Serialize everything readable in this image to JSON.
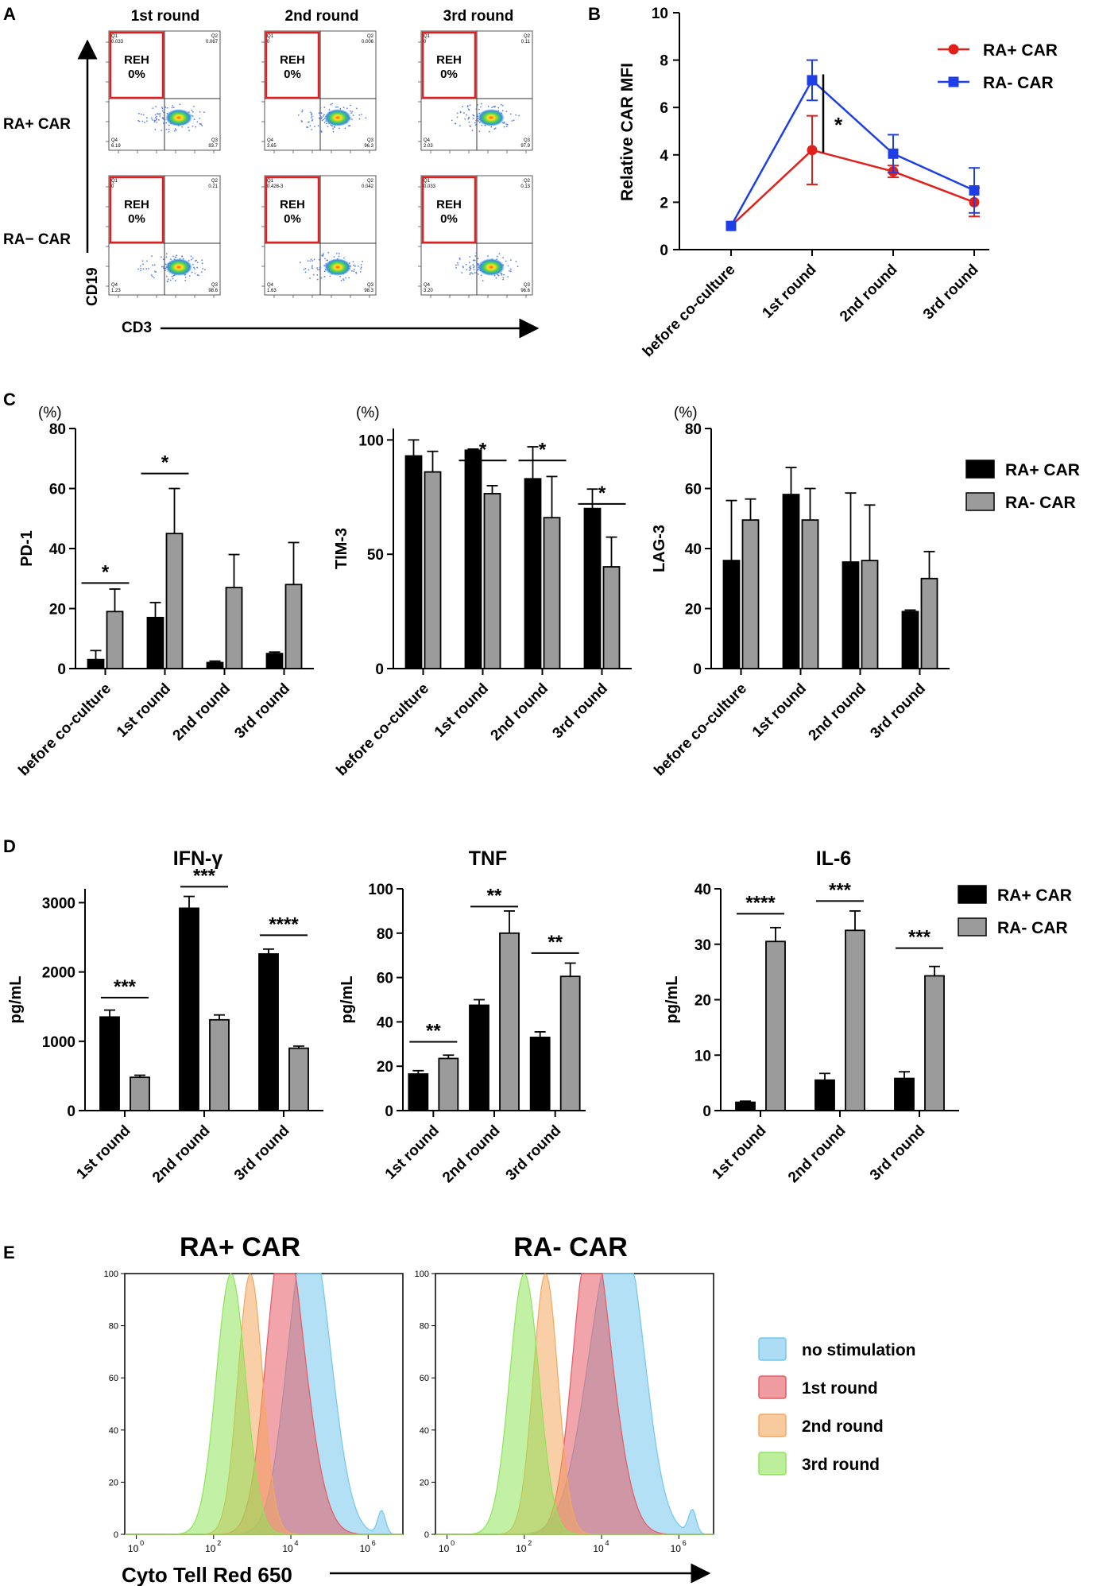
{
  "colors": {
    "ra_pos": "#e0201b",
    "ra_neg": "#1f3fe6",
    "bar_pos": "#000000",
    "bar_neg": "#9b9b9b",
    "hist_blue": "#74c7ec",
    "hist_red": "#e55a63",
    "hist_orange": "#f4a85e",
    "hist_green": "#8fe35a",
    "gate": "#e02020"
  },
  "panel_labels": {
    "A": "A",
    "B": "B",
    "C": "C",
    "D": "D",
    "E": "E"
  },
  "panel_a": {
    "columns": [
      "1st round",
      "2nd round",
      "3rd round"
    ],
    "rows": [
      "RA+ CAR",
      "RA− CAR"
    ],
    "gate_label": "REH",
    "gate_value": "0%",
    "x_axis": "CD3",
    "y_axis": "CD19",
    "quadrants": [
      [
        {
          "q1": "Q1",
          "v1": "0.033",
          "q2": "Q2",
          "v2": "0.067",
          "q4": "Q4",
          "v4": "6.19",
          "q3": "Q3",
          "v3": "93.7"
        },
        {
          "q1": "Q1",
          "v1": "0",
          "q2": "Q2",
          "v2": "0.006",
          "q4": "Q4",
          "v4": "3.65",
          "q3": "Q3",
          "v3": "96.3"
        },
        {
          "q1": "Q1",
          "v1": "0",
          "q2": "Q2",
          "v2": "0.11",
          "q4": "Q4",
          "v4": "2.03",
          "q3": "Q3",
          "v3": "97.9"
        }
      ],
      [
        {
          "q1": "Q1",
          "v1": "0",
          "q2": "Q2",
          "v2": "0.21",
          "q4": "Q4",
          "v4": "1.23",
          "q3": "Q3",
          "v3": "98.6"
        },
        {
          "q1": "Q1",
          "v1": "0.426-3",
          "q2": "Q2",
          "v2": "0.042",
          "q4": "Q4",
          "v4": "1.63",
          "q3": "Q3",
          "v3": "98.3"
        },
        {
          "q1": "Q1",
          "v1": "0.033",
          "q2": "Q2",
          "v2": "0.13",
          "q4": "Q4",
          "v4": "3.20",
          "q3": "Q3",
          "v3": "96.6"
        }
      ]
    ]
  },
  "chart_data": [
    {
      "id": "B",
      "type": "line",
      "title": "",
      "ylabel": "Relative CAR MFI",
      "categories": [
        "before co-culture",
        "1st round",
        "2nd round",
        "3rd round"
      ],
      "ylim": [
        0,
        10
      ],
      "yticks": [
        0,
        2,
        4,
        6,
        8,
        10
      ],
      "series": [
        {
          "name": "RA+ CAR",
          "values": [
            1.0,
            4.2,
            3.3,
            2.0
          ],
          "errors": [
            0.0,
            1.45,
            0.25,
            0.6
          ]
        },
        {
          "name": "RA- CAR",
          "values": [
            1.0,
            7.15,
            4.05,
            2.5
          ],
          "errors": [
            0.0,
            0.85,
            0.8,
            0.95
          ]
        }
      ],
      "annotations": [
        {
          "text": "*",
          "between": "1st round"
        }
      ]
    },
    {
      "id": "C-PD1",
      "type": "bar",
      "unit": "(%)",
      "ylabel": "PD-1",
      "categories": [
        "before co-culture",
        "1st round",
        "2nd round",
        "3rd round"
      ],
      "ylim": [
        0,
        80
      ],
      "yticks": [
        0,
        20,
        40,
        60,
        80
      ],
      "series": [
        {
          "name": "RA+ CAR",
          "values": [
            3.0,
            17.0,
            2.0,
            5.0
          ],
          "errors": [
            3.0,
            5.0,
            0.5,
            0.5
          ]
        },
        {
          "name": "RA- CAR",
          "values": [
            19.0,
            45.0,
            27.0,
            28.0
          ],
          "errors": [
            7.5,
            15.0,
            11.0,
            14.0
          ]
        }
      ],
      "annotations": [
        {
          "category": 0,
          "text": "*",
          "level": 28.5
        },
        {
          "category": 1,
          "text": "*",
          "level": 65
        }
      ]
    },
    {
      "id": "C-TIM3",
      "type": "bar",
      "unit": "(%)",
      "ylabel": "TIM-3",
      "categories": [
        "before co-culture",
        "1st round",
        "2nd round",
        "3rd round"
      ],
      "ylim": [
        0,
        105
      ],
      "yticks": [
        0,
        50,
        100
      ],
      "series": [
        {
          "name": "RA+ CAR",
          "values": [
            93.0,
            95.5,
            83.0,
            70.0
          ],
          "errors": [
            7.0,
            0.5,
            14.0,
            8.5
          ]
        },
        {
          "name": "RA- CAR",
          "values": [
            86.0,
            76.5,
            66.0,
            44.5
          ],
          "errors": [
            9.0,
            3.5,
            18.0,
            13.0
          ]
        }
      ],
      "annotations": [
        {
          "category": 1,
          "text": "*",
          "level": 91
        },
        {
          "category": 2,
          "text": "*",
          "level": 91
        },
        {
          "category": 3,
          "text": "*",
          "level": 72
        }
      ]
    },
    {
      "id": "C-LAG3",
      "type": "bar",
      "unit": "(%)",
      "ylabel": "LAG-3",
      "categories": [
        "before co-culture",
        "1st round",
        "2nd round",
        "3rd round"
      ],
      "ylim": [
        0,
        80
      ],
      "yticks": [
        0,
        20,
        40,
        60,
        80
      ],
      "series": [
        {
          "name": "RA+ CAR",
          "values": [
            36.0,
            58.0,
            35.5,
            19.0
          ],
          "errors": [
            20.0,
            9.0,
            23.0,
            0.5
          ]
        },
        {
          "name": "RA- CAR",
          "values": [
            49.5,
            49.5,
            36.0,
            30.0
          ],
          "errors": [
            7.0,
            10.5,
            18.5,
            9.0
          ]
        }
      ],
      "annotations": []
    },
    {
      "id": "D-IFNg",
      "type": "bar",
      "title": "IFN-γ",
      "ylabel": "pg/mL",
      "categories": [
        "1st round",
        "2nd round",
        "3rd round"
      ],
      "ylim": [
        0,
        3200
      ],
      "yticks": [
        0,
        1000,
        2000,
        3000
      ],
      "series": [
        {
          "name": "RA+ CAR",
          "values": [
            1350,
            2920,
            2260
          ],
          "errors": [
            100,
            170,
            70
          ]
        },
        {
          "name": "RA- CAR",
          "values": [
            480,
            1310,
            900
          ],
          "errors": [
            30,
            70,
            30
          ]
        }
      ],
      "annotations": [
        {
          "category": 0,
          "text": "***",
          "level": 1630
        },
        {
          "category": 1,
          "text": "***",
          "level": 3230
        },
        {
          "category": 2,
          "text": "****",
          "level": 2530
        }
      ]
    },
    {
      "id": "D-TNF",
      "type": "bar",
      "title": "TNF",
      "ylabel": "pg/mL",
      "categories": [
        "1st round",
        "2nd round",
        "3rd round"
      ],
      "ylim": [
        0,
        100
      ],
      "yticks": [
        0,
        20,
        40,
        60,
        80,
        100
      ],
      "series": [
        {
          "name": "RA+ CAR",
          "values": [
            16.5,
            47.5,
            33.0
          ],
          "errors": [
            1.5,
            2.5,
            2.5
          ]
        },
        {
          "name": "RA- CAR",
          "values": [
            23.5,
            80.0,
            60.5
          ],
          "errors": [
            1.5,
            10.0,
            6.0
          ]
        }
      ],
      "annotations": [
        {
          "category": 0,
          "text": "**",
          "level": 31
        },
        {
          "category": 1,
          "text": "**",
          "level": 92
        },
        {
          "category": 2,
          "text": "**",
          "level": 71
        }
      ]
    },
    {
      "id": "D-IL6",
      "type": "bar",
      "title": "IL-6",
      "ylabel": "pg/mL",
      "categories": [
        "1st round",
        "2nd round",
        "3rd round"
      ],
      "ylim": [
        0,
        40
      ],
      "yticks": [
        0,
        10,
        20,
        30,
        40
      ],
      "series": [
        {
          "name": "RA+ CAR",
          "values": [
            1.5,
            5.5,
            5.8
          ],
          "errors": [
            0.2,
            1.2,
            1.2
          ]
        },
        {
          "name": "RA- CAR",
          "values": [
            30.5,
            32.5,
            24.3
          ],
          "errors": [
            2.5,
            3.5,
            1.7
          ]
        }
      ],
      "annotations": [
        {
          "category": 0,
          "text": "****",
          "level": 35.5
        },
        {
          "category": 1,
          "text": "***",
          "level": 37.8
        },
        {
          "category": 2,
          "text": "***",
          "level": 29.3
        }
      ]
    },
    {
      "id": "E",
      "type": "area",
      "titles": [
        "RA+ CAR",
        "RA- CAR"
      ],
      "xlabel": "Cyto Tell Red 650",
      "xscale": "log",
      "xlim_log10": [
        -0.3,
        6.9
      ],
      "xticks": [
        {
          "base": "10",
          "exp": "0"
        },
        {
          "base": "10",
          "exp": "2"
        },
        {
          "base": "10",
          "exp": "4"
        },
        {
          "base": "10",
          "exp": "6"
        }
      ],
      "ylim": [
        0,
        100
      ],
      "yticks": [
        0,
        20,
        40,
        60,
        80,
        100
      ],
      "legend": [
        "no stimulation",
        "1st round",
        "2nd round",
        "3rd round"
      ],
      "peaks_log10": {
        "RA+ CAR": {
          "no stimulation": 4.35,
          "1st round": 3.75,
          "2nd round": 2.95,
          "3rd round": 2.45
        },
        "RA- CAR": {
          "no stimulation": 4.25,
          "1st round": 3.65,
          "2nd round": 2.55,
          "3rd round": 2.0
        }
      }
    }
  ],
  "legends": {
    "B": [
      "RA+ CAR",
      "RA- CAR"
    ],
    "C": [
      "RA+ CAR",
      "RA- CAR"
    ],
    "D": [
      "RA+ CAR",
      "RA- CAR"
    ]
  }
}
